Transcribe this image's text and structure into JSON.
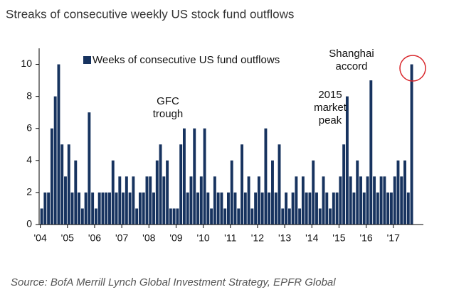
{
  "chart_data": {
    "type": "bar",
    "title": "Streaks of consecutive weekly US stock fund outflows",
    "legend": "Weeks of consecutive US fund outflows",
    "source": "Source: BofA Merrill Lynch Global Investment Strategy, EPFR Global",
    "color": "#17335f",
    "annotations": [
      [
        "GFC",
        "trough"
      ],
      [
        "2015",
        "market",
        "peak"
      ],
      [
        "Shanghai",
        "accord"
      ]
    ],
    "x": [
      2004,
      2004.125,
      2004.25,
      2004.375,
      2004.5,
      2004.625,
      2004.75,
      2004.875,
      2005,
      2005.125,
      2005.25,
      2005.375,
      2005.5,
      2005.625,
      2005.75,
      2005.875,
      2006,
      2006.125,
      2006.25,
      2006.375,
      2006.5,
      2006.625,
      2006.75,
      2006.875,
      2007,
      2007.125,
      2007.25,
      2007.375,
      2007.5,
      2007.625,
      2007.75,
      2007.875,
      2008,
      2008.125,
      2008.25,
      2008.375,
      2008.5,
      2008.625,
      2008.75,
      2008.875,
      2009,
      2009.125,
      2009.25,
      2009.375,
      2009.5,
      2009.625,
      2009.75,
      2009.875,
      2010,
      2010.125,
      2010.25,
      2010.375,
      2010.5,
      2010.625,
      2010.75,
      2010.875,
      2011,
      2011.125,
      2011.25,
      2011.375,
      2011.5,
      2011.625,
      2011.75,
      2011.875,
      2012,
      2012.125,
      2012.25,
      2012.375,
      2012.5,
      2012.625,
      2012.75,
      2012.875,
      2013,
      2013.125,
      2013.25,
      2013.375,
      2013.5,
      2013.625,
      2013.75,
      2013.875,
      2014,
      2014.125,
      2014.25,
      2014.375,
      2014.5,
      2014.625,
      2014.75,
      2014.875,
      2015,
      2015.125,
      2015.25,
      2015.375,
      2015.5,
      2015.625,
      2015.75,
      2015.875,
      2016,
      2016.125,
      2016.25,
      2016.375,
      2016.5,
      2016.625,
      2016.75,
      2016.875,
      2017,
      2017.125,
      2017.25,
      2017.375,
      2017.5,
      2017.625
    ],
    "values": [
      1,
      2,
      2,
      6,
      8,
      10,
      5,
      3,
      5,
      2,
      4,
      2,
      1,
      2,
      7,
      2,
      1,
      2,
      2,
      2,
      2,
      4,
      2,
      3,
      2,
      3,
      2,
      3,
      1,
      2,
      2,
      3,
      3,
      2,
      4,
      5,
      3,
      4,
      1,
      1,
      1,
      5,
      6,
      2,
      3,
      6,
      2,
      3,
      6,
      2,
      1,
      3,
      2,
      2,
      1,
      2,
      4,
      2,
      1,
      5,
      2,
      3,
      1,
      2,
      3,
      2,
      6,
      2,
      4,
      2,
      5,
      1,
      2,
      1,
      2,
      3,
      1,
      3,
      2,
      2,
      4,
      2,
      1,
      3,
      2,
      1,
      2,
      2,
      3,
      5,
      8,
      3,
      2,
      4,
      3,
      2,
      3,
      9,
      3,
      2,
      3,
      3,
      2,
      2,
      3,
      4,
      3,
      4,
      2,
      10
    ],
    "xlim": [
      2003.8,
      2017.95
    ],
    "xticks": [
      {
        "value": 2004,
        "label": "'04"
      },
      {
        "value": 2005,
        "label": "'05"
      },
      {
        "value": 2006,
        "label": "'06"
      },
      {
        "value": 2007,
        "label": "'07"
      },
      {
        "value": 2008,
        "label": "'08"
      },
      {
        "value": 2009,
        "label": "'09"
      },
      {
        "value": 2010,
        "label": "'10"
      },
      {
        "value": 2011,
        "label": "'11"
      },
      {
        "value": 2012,
        "label": "'12"
      },
      {
        "value": 2013,
        "label": "'13"
      },
      {
        "value": 2014,
        "label": "'14"
      },
      {
        "value": 2015,
        "label": "'15"
      },
      {
        "value": 2016,
        "label": "'16"
      },
      {
        "value": 2017,
        "label": "'17"
      }
    ],
    "ylim": [
      0,
      11
    ],
    "yticks": [
      0,
      2,
      4,
      6,
      8,
      10
    ]
  }
}
